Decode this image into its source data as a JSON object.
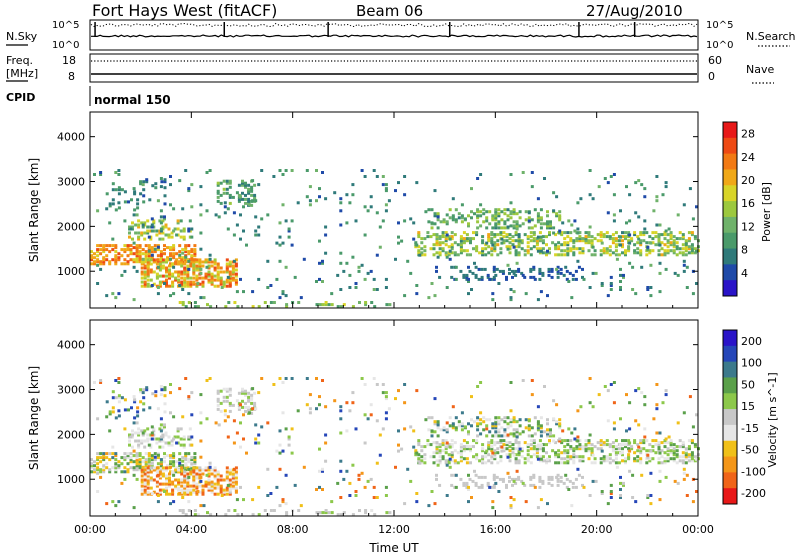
{
  "header": {
    "radar": "Fort Hays West (fitACF)",
    "beam": "Beam 06",
    "date": "27/Aug/2010"
  },
  "noise_panel": {
    "left_label": "N.Sky",
    "left_ticks": [
      "10^5",
      "10^0"
    ],
    "right_ticks": [
      "10^5",
      "10^0"
    ],
    "right_label": "N.Search"
  },
  "freq_panel": {
    "left_label_1": "Freq.",
    "left_label_2": "[MHz]",
    "left_ticks": [
      "18",
      "8"
    ],
    "right_ticks": [
      "60",
      "0"
    ],
    "right_label": "Nave"
  },
  "cpid": {
    "label": "CPID",
    "mode": "normal 150"
  },
  "colors": {
    "power_scale": [
      "#2a14c8",
      "#1f4aa8",
      "#2f7a7a",
      "#4a9a6a",
      "#6fb26a",
      "#9cc83e",
      "#d8d428",
      "#f0a818",
      "#f27a14",
      "#ee4a14",
      "#e81818"
    ],
    "velocity_scale": [
      "#2a14c8",
      "#2546b8",
      "#3c7a8c",
      "#5aa04a",
      "#8cc84a",
      "#c8c8c8",
      "#e6e6e6",
      "#f0c018",
      "#f49618",
      "#f06418",
      "#e81818"
    ]
  },
  "chart_data": [
    {
      "type": "heatmap",
      "name": "Power panel",
      "ylabel": "Slant Range [km]",
      "y_ticks": [
        "1000",
        "2000",
        "3000",
        "4000"
      ],
      "ylim": [
        180,
        4550
      ],
      "x_ticks": [
        "00:00",
        "04:00",
        "08:00",
        "12:00",
        "16:00",
        "20:00",
        "00:00"
      ],
      "xlim": [
        0,
        24
      ],
      "colorbar": {
        "label": "Power [dB]",
        "ticks": [
          "4",
          "8",
          "12",
          "16",
          "20",
          "24",
          "28"
        ],
        "range": [
          0,
          30
        ]
      }
    },
    {
      "type": "heatmap",
      "name": "Velocity panel",
      "ylabel": "Slant Range [km]",
      "y_ticks": [
        "1000",
        "2000",
        "3000",
        "4000"
      ],
      "ylim": [
        180,
        4550
      ],
      "x_ticks": [
        "00:00",
        "04:00",
        "08:00",
        "12:00",
        "16:00",
        "20:00",
        "00:00"
      ],
      "xlim": [
        0,
        24
      ],
      "xlabel": "Time UT",
      "colorbar": {
        "label": "Velocity [m s^-1]",
        "ticks": [
          "200",
          "100",
          "50",
          "15",
          "-15",
          "-50",
          "-100",
          "-200"
        ],
        "range": [
          -250,
          250
        ]
      }
    }
  ]
}
